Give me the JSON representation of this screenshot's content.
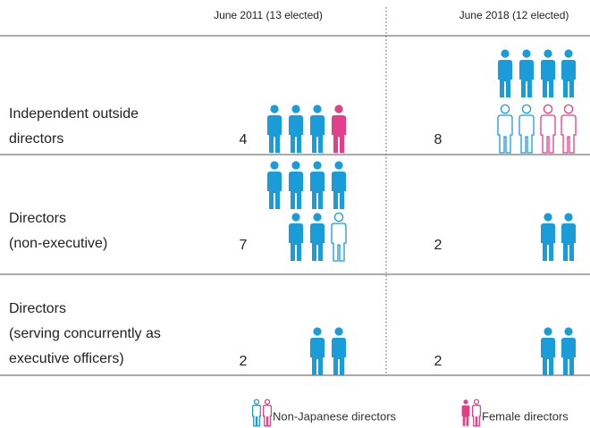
{
  "header": {
    "columns": [
      "June 2011 (13 elected)",
      "June 2018 (12 elected)"
    ]
  },
  "rows": [
    {
      "label": [
        "Independent outside",
        "directors"
      ],
      "counts": [
        4,
        8
      ]
    },
    {
      "label": [
        "Directors",
        "(non-executive)"
      ],
      "counts": [
        7,
        2
      ]
    },
    {
      "label": [
        "Directors",
        "(serving concurrently as",
        "executive officers)"
      ],
      "counts": [
        2,
        2
      ]
    }
  ],
  "legend": [
    "Non-Japanese directors",
    "Female directors"
  ]
}
